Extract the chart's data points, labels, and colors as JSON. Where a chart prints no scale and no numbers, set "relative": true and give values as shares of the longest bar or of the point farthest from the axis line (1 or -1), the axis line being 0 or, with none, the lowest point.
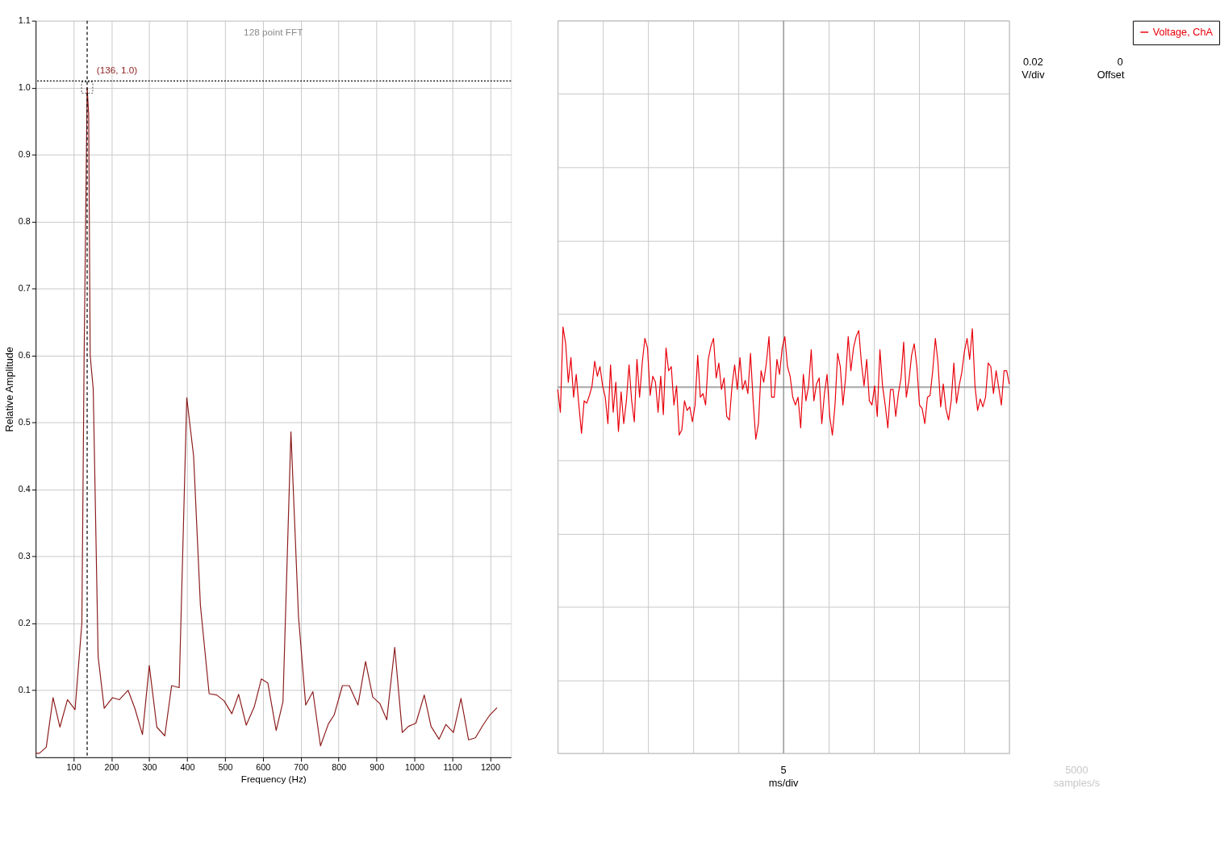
{
  "chart_data": [
    {
      "type": "line",
      "title": null,
      "xlabel": "Frequency (Hz)",
      "ylabel": "Relative Amplitude",
      "x": [
        0,
        10,
        28,
        46,
        64,
        84,
        104,
        122,
        128,
        136,
        140,
        144,
        152,
        165,
        181,
        203,
        221,
        244,
        262,
        282,
        300,
        320,
        341,
        359,
        379,
        399,
        417,
        435,
        458,
        478,
        498,
        518,
        536,
        556,
        577,
        596,
        613,
        635,
        653,
        674,
        694,
        713,
        732,
        752,
        773,
        788,
        810,
        828,
        851,
        871,
        890,
        909,
        927,
        948,
        968,
        984,
        1004,
        1026,
        1044,
        1065,
        1083,
        1103,
        1123,
        1143,
        1161,
        1181,
        1199,
        1218
      ],
      "series": [
        {
          "color": "#8c1c1c",
          "values": [
            0.006,
            0.006,
            0.015,
            0.089,
            0.045,
            0.086,
            0.071,
            0.2,
            0.6,
            1.0,
            0.96,
            0.6,
            0.55,
            0.15,
            0.073,
            0.089,
            0.086,
            0.1,
            0.073,
            0.034,
            0.137,
            0.045,
            0.032,
            0.107,
            0.104,
            0.537,
            0.45,
            0.227,
            0.095,
            0.093,
            0.084,
            0.065,
            0.094,
            0.048,
            0.075,
            0.117,
            0.111,
            0.04,
            0.083,
            0.486,
            0.21,
            0.078,
            0.098,
            0.017,
            0.05,
            0.063,
            0.107,
            0.107,
            0.078,
            0.143,
            0.09,
            0.08,
            0.056,
            0.164,
            0.037,
            0.046,
            0.051,
            0.093,
            0.046,
            0.027,
            0.049,
            0.037,
            0.088,
            0.026,
            0.029,
            0.048,
            0.063,
            0.074
          ]
        }
      ],
      "xlim": [
        0,
        1255
      ],
      "xticks": [
        100,
        200,
        300,
        400,
        500,
        600,
        700,
        800,
        900,
        1000,
        1100,
        1200
      ],
      "ylim": [
        0,
        1.1
      ],
      "yticks": [
        0.1,
        0.2,
        0.3,
        0.4,
        0.5,
        0.6,
        0.7,
        0.8,
        0.9,
        {
          "value": 1.0,
          "label": "1.0"
        },
        1.1
      ],
      "ref_lines": [
        {
          "axis": "x",
          "value": 136,
          "label": null,
          "color": "#000000",
          "line_style": "dashed"
        },
        {
          "axis": "y",
          "value": 1.01,
          "label": null,
          "color": "#000000",
          "line_style": "dotted"
        }
      ],
      "annotations": [
        {
          "text": "(136, 1.0)",
          "x": 136,
          "y": 1.0
        },
        "128 point FFT"
      ],
      "grid": true,
      "legend": false,
      "marker": "none",
      "line_style": "solid"
    },
    {
      "type": "line",
      "relative": true,
      "categories": [
        null,
        null,
        null,
        null,
        null,
        null,
        null,
        null,
        null,
        null,
        null,
        null,
        null,
        null,
        null,
        null,
        null,
        null,
        null,
        null,
        null,
        null,
        null,
        null,
        null,
        null,
        null,
        null,
        null,
        null,
        null,
        null,
        null,
        null,
        null,
        null,
        null,
        null,
        null,
        null,
        null,
        null,
        null,
        null,
        null,
        null,
        null,
        null,
        null,
        null,
        null,
        null,
        null,
        null,
        null,
        null,
        null,
        null,
        null,
        null,
        null,
        null,
        null,
        null,
        null,
        null,
        null,
        null,
        null,
        null,
        null,
        null,
        null,
        null,
        null,
        null,
        null,
        null,
        null,
        null,
        null,
        null,
        null,
        null,
        null,
        null,
        null,
        null,
        null,
        null,
        null,
        null,
        null,
        null,
        null,
        null,
        null,
        null,
        null,
        null,
        null,
        null,
        null,
        null,
        null,
        null,
        null,
        null,
        null,
        null,
        null,
        null,
        null,
        null,
        null,
        null,
        null,
        null,
        null,
        null,
        null,
        null,
        null,
        null,
        null,
        null,
        null,
        null,
        null,
        null,
        null,
        null,
        null,
        null,
        null,
        null,
        null,
        null,
        null,
        null,
        null,
        null,
        null,
        null,
        null,
        null,
        null,
        null,
        null,
        null,
        null,
        null,
        null,
        null,
        null,
        null,
        null,
        null,
        null,
        null,
        null,
        null,
        null,
        null,
        null,
        null,
        null,
        null,
        null,
        null,
        null,
        null
      ],
      "series": [
        {
          "name": "Voltage, ChA",
          "color": "#e8000b",
          "values": [
            -0.04,
            -0.42,
            1.0,
            0.72,
            0.08,
            0.49,
            -0.17,
            0.21,
            -0.3,
            -0.77,
            -0.23,
            -0.27,
            -0.14,
            0.02,
            0.43,
            0.18,
            0.34,
            0.02,
            -0.17,
            -0.61,
            0.37,
            -0.42,
            0.08,
            -0.74,
            -0.08,
            -0.61,
            -0.23,
            0.37,
            -0.23,
            -0.58,
            0.46,
            -0.17,
            0.4,
            0.81,
            0.65,
            -0.14,
            0.18,
            0.08,
            -0.42,
            0.18,
            -0.46,
            0.65,
            0.27,
            0.34,
            -0.3,
            0.02,
            -0.8,
            -0.71,
            -0.23,
            -0.39,
            -0.33,
            -0.58,
            -0.3,
            0.53,
            -0.17,
            -0.11,
            -0.3,
            0.46,
            0.68,
            0.81,
            0.15,
            0.4,
            -0.04,
            0.15,
            -0.49,
            -0.55,
            0.02,
            0.37,
            -0.04,
            0.49,
            -0.04,
            0.11,
            -0.11,
            0.56,
            -0.23,
            -0.87,
            -0.61,
            0.27,
            0.08,
            0.4,
            0.84,
            -0.17,
            -0.17,
            0.46,
            0.21,
            0.65,
            0.84,
            0.34,
            0.18,
            -0.17,
            -0.3,
            -0.17,
            -0.68,
            0.21,
            -0.23,
            0.02,
            0.62,
            -0.23,
            0.05,
            0.15,
            -0.61,
            -0.11,
            0.21,
            -0.49,
            -0.8,
            -0.3,
            0.56,
            0.34,
            -0.3,
            0.15,
            0.84,
            0.27,
            0.65,
            0.84,
            0.94,
            0.4,
            0.02,
            0.46,
            -0.23,
            -0.3,
            0.02,
            -0.49,
            0.62,
            0.02,
            -0.3,
            -0.68,
            -0.04,
            -0.04,
            -0.49,
            -0.11,
            0.15,
            0.75,
            -0.17,
            0.11,
            0.53,
            0.72,
            0.34,
            -0.3,
            -0.36,
            -0.61,
            -0.17,
            -0.14,
            0.27,
            0.81,
            0.4,
            -0.33,
            0.05,
            -0.36,
            -0.55,
            -0.23,
            0.4,
            -0.27,
            0.02,
            0.24,
            0.59,
            0.81,
            0.46,
            0.97,
            0.02,
            -0.39,
            -0.2,
            -0.33,
            -0.17,
            0.4,
            0.34,
            -0.11,
            0.27,
            -0.01,
            -0.3,
            0.27,
            0.27,
            0.05
          ]
        }
      ],
      "annotations": [
        "5",
        "ms/div",
        "5000",
        "samples/s",
        "0.02",
        "V/div",
        "0",
        "Offset"
      ],
      "grid": true,
      "legend": "top right",
      "tick_labels": false,
      "marker": "none",
      "line_style": "solid"
    }
  ]
}
